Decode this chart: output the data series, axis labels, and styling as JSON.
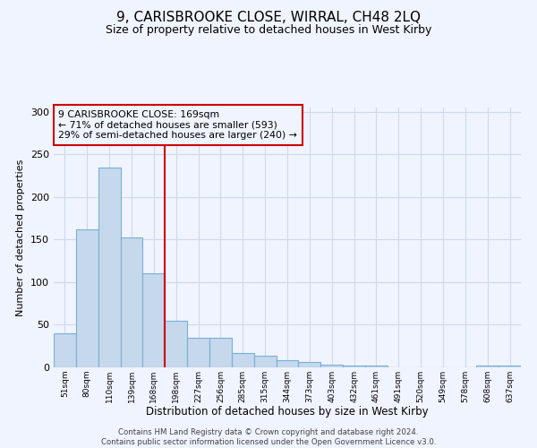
{
  "title": "9, CARISBROOKE CLOSE, WIRRAL, CH48 2LQ",
  "subtitle": "Size of property relative to detached houses in West Kirby",
  "xlabel": "Distribution of detached houses by size in West Kirby",
  "ylabel": "Number of detached properties",
  "bin_labels": [
    "51sqm",
    "80sqm",
    "110sqm",
    "139sqm",
    "168sqm",
    "198sqm",
    "227sqm",
    "256sqm",
    "285sqm",
    "315sqm",
    "344sqm",
    "373sqm",
    "403sqm",
    "432sqm",
    "461sqm",
    "491sqm",
    "520sqm",
    "549sqm",
    "578sqm",
    "608sqm",
    "637sqm"
  ],
  "bar_heights": [
    40,
    162,
    235,
    153,
    110,
    55,
    35,
    35,
    17,
    14,
    8,
    6,
    3,
    2,
    2,
    0,
    0,
    0,
    0,
    2,
    2
  ],
  "bar_color": "#c5d8ec",
  "bar_edge_color": "#7aafd4",
  "vline_x": 4.5,
  "vline_color": "#cc0000",
  "annotation_text": "9 CARISBROOKE CLOSE: 169sqm\n← 71% of detached houses are smaller (593)\n29% of semi-detached houses are larger (240) →",
  "annotation_box_color": "#cc0000",
  "ylim": [
    0,
    305
  ],
  "yticks": [
    0,
    50,
    100,
    150,
    200,
    250,
    300
  ],
  "footer_text": "Contains HM Land Registry data © Crown copyright and database right 2024.\nContains public sector information licensed under the Open Government Licence v3.0.",
  "bg_color": "#f0f4ff",
  "grid_color": "#d0d8ee",
  "title_fontsize": 11,
  "subtitle_fontsize": 9
}
